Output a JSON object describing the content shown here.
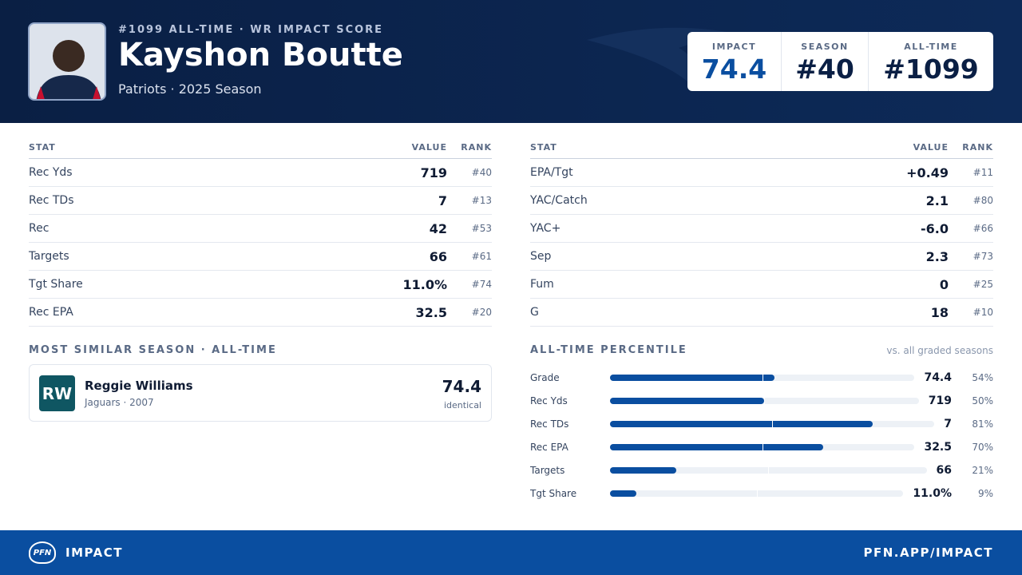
{
  "header": {
    "eyebrow": "#1099 ALL-TIME · WR IMPACT SCORE",
    "player_name": "Kayshon Boutte",
    "team_season": "Patriots · 2025 Season",
    "scores": [
      {
        "label": "IMPACT",
        "value": "74.4"
      },
      {
        "label": "SEASON",
        "value": "#40"
      },
      {
        "label": "ALL-TIME",
        "value": "#1099"
      }
    ]
  },
  "stat_tables": [
    {
      "columns": [
        "STAT",
        "VALUE",
        "RANK"
      ],
      "rows": [
        [
          "Rec Yds",
          "719",
          "#40"
        ],
        [
          "Rec TDs",
          "7",
          "#13"
        ],
        [
          "Rec",
          "42",
          "#53"
        ],
        [
          "Targets",
          "66",
          "#61"
        ],
        [
          "Tgt Share",
          "11.0%",
          "#74"
        ],
        [
          "Rec EPA",
          "32.5",
          "#20"
        ]
      ]
    },
    {
      "columns": [
        "STAT",
        "VALUE",
        "RANK"
      ],
      "rows": [
        [
          "EPA/Tgt",
          "+0.49",
          "#11"
        ],
        [
          "YAC/Catch",
          "2.1",
          "#80"
        ],
        [
          "YAC+",
          "-6.0",
          "#66"
        ],
        [
          "Sep",
          "2.3",
          "#73"
        ],
        [
          "Fum",
          "0",
          "#25"
        ],
        [
          "G",
          "18",
          "#10"
        ]
      ]
    }
  ],
  "similar": {
    "title": "MOST SIMILAR SEASON · ALL-TIME",
    "initials": "RW",
    "name": "Reggie Williams",
    "detail": "Jaguars · 2007",
    "score": "74.4",
    "note": "identical"
  },
  "percentiles": {
    "title": "ALL-TIME PERCENTILE",
    "note": "vs. all graded seasons",
    "rows": [
      {
        "label": "Grade",
        "value": "74.4",
        "percentile": 54,
        "percentile_label": "54%"
      },
      {
        "label": "Rec Yds",
        "value": "719",
        "percentile": 50,
        "percentile_label": "50%"
      },
      {
        "label": "Rec TDs",
        "value": "7",
        "percentile": 81,
        "percentile_label": "81%"
      },
      {
        "label": "Rec EPA",
        "value": "32.5",
        "percentile": 70,
        "percentile_label": "70%"
      },
      {
        "label": "Targets",
        "value": "66",
        "percentile": 21,
        "percentile_label": "21%"
      },
      {
        "label": "Tgt Share",
        "value": "11.0%",
        "percentile": 9,
        "percentile_label": "9%"
      }
    ]
  },
  "footer": {
    "logo": "PFN",
    "brand": "IMPACT",
    "url": "PFN.APP/IMPACT"
  }
}
